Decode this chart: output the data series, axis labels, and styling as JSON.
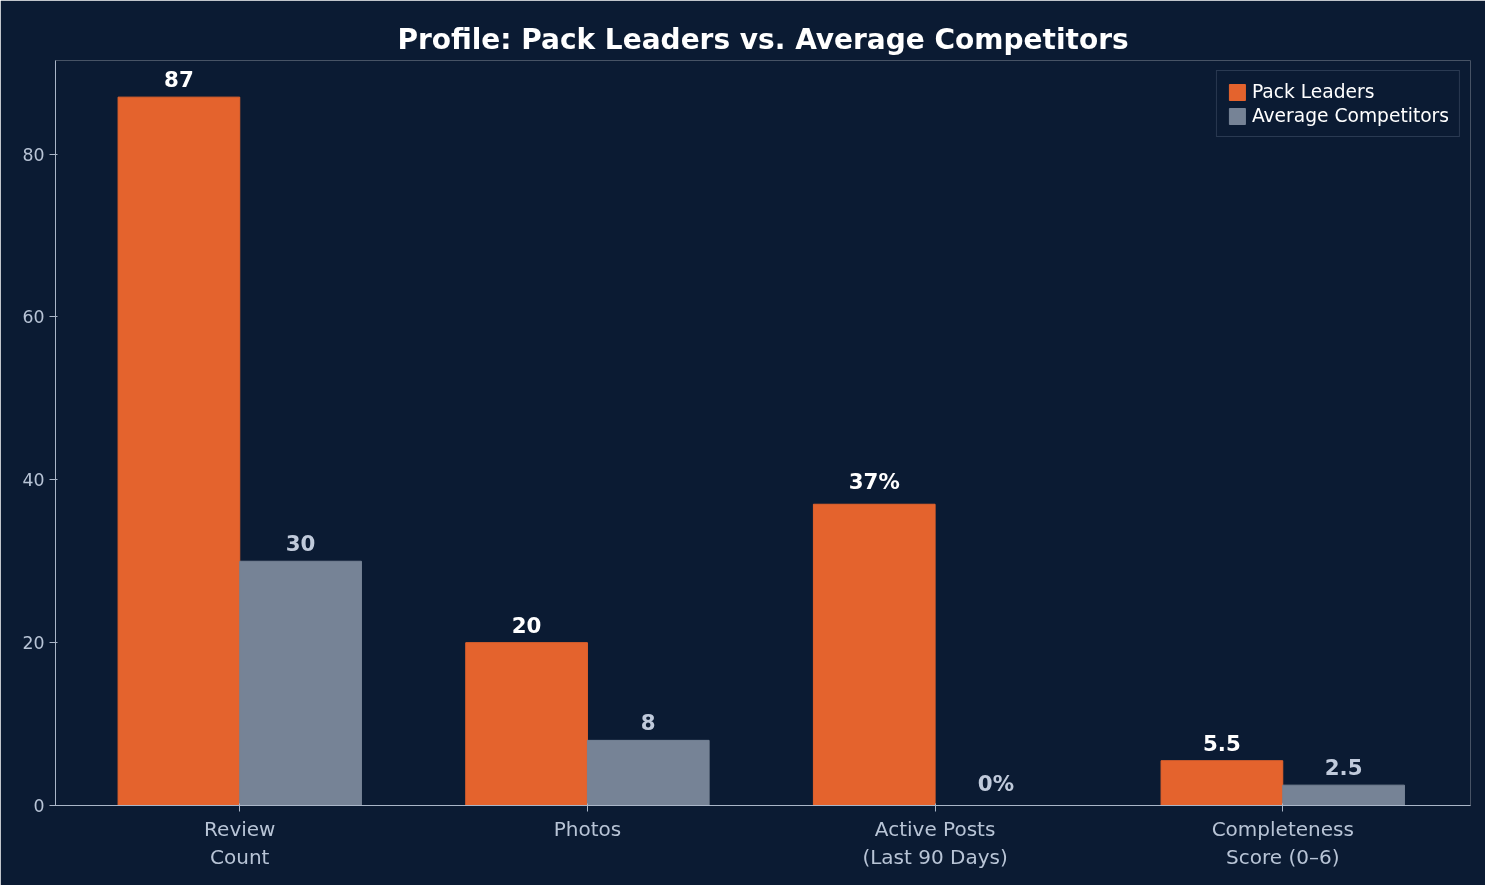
{
  "chart_data": {
    "type": "bar",
    "title": "Profile: Pack Leaders vs. Average Competitors",
    "categories": [
      "Review\nCount",
      "Photos",
      "Active Posts\n(Last 90 Days)",
      "Completeness\nScore (0–6)"
    ],
    "series": [
      {
        "name": "Pack Leaders",
        "color": "#e4632d",
        "values": [
          87,
          20,
          37,
          5.5
        ],
        "value_labels": [
          "87",
          "20",
          "37%",
          "5.5"
        ]
      },
      {
        "name": "Average Competitors",
        "color": "#768396",
        "values": [
          30,
          8,
          0,
          2.5
        ],
        "value_labels": [
          "30",
          "8",
          "0%",
          "2.5"
        ]
      }
    ],
    "ylim": [
      0,
      91.5
    ],
    "yticks": [
      0,
      20,
      40,
      60,
      80
    ],
    "grid": false,
    "legend": "top right"
  }
}
